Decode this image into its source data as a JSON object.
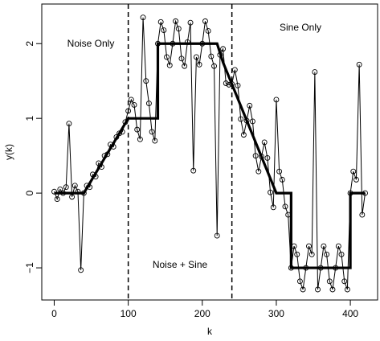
{
  "chart_data": {
    "type": "line",
    "xlabel": "k",
    "ylabel": "y(k)",
    "annotations": [
      "Noise Only",
      "Noise + Sine",
      "Sine Only"
    ],
    "xlim": [
      -16.8,
      436.8
    ],
    "ylim": [
      -1.43,
      2.53
    ],
    "xticks": [
      0,
      100,
      200,
      300,
      400
    ],
    "yticks": [
      {
        "value": -1,
        "label": "−1"
      },
      0,
      1,
      2
    ],
    "vlines": [
      100,
      240
    ],
    "series": [
      {
        "style": "points-line",
        "color": "#000000",
        "x": [
          0,
          4,
          8,
          12,
          16,
          20,
          24,
          28,
          32,
          36,
          40,
          44,
          48,
          52,
          56,
          60,
          64,
          68,
          72,
          76,
          80,
          84,
          88,
          92,
          96,
          100,
          104,
          108,
          112,
          116,
          120,
          124,
          128,
          132,
          136,
          140,
          144,
          148,
          152,
          156,
          160,
          164,
          168,
          172,
          176,
          180,
          184,
          188,
          192,
          196,
          200,
          204,
          208,
          212,
          216,
          220,
          224,
          228,
          232,
          236,
          240,
          244,
          248,
          252,
          256,
          260,
          264,
          268,
          272,
          276,
          280,
          284,
          288,
          292,
          296,
          300,
          304,
          308,
          312,
          316,
          320,
          324,
          328,
          332,
          336,
          340,
          344,
          348,
          352,
          356,
          360,
          364,
          368,
          372,
          376,
          380,
          384,
          388,
          392,
          396,
          400,
          404,
          408,
          412,
          416,
          420
        ],
        "values": [
          0.02,
          -0.08,
          0.05,
          0.0,
          0.08,
          0.93,
          -0.05,
          0.1,
          0.02,
          -1.03,
          0.0,
          0.1,
          0.08,
          0.25,
          0.22,
          0.4,
          0.35,
          0.5,
          0.52,
          0.65,
          0.62,
          0.75,
          0.8,
          0.82,
          0.95,
          1.1,
          1.25,
          1.18,
          0.85,
          0.72,
          2.35,
          1.5,
          1.2,
          0.82,
          0.7,
          2.0,
          2.29,
          2.18,
          1.82,
          1.71,
          2.0,
          2.3,
          2.2,
          1.8,
          1.7,
          2.02,
          2.28,
          0.3,
          1.82,
          1.72,
          2.0,
          2.3,
          2.17,
          1.83,
          1.7,
          -0.57,
          1.85,
          1.93,
          1.47,
          1.45,
          1.46,
          1.65,
          1.44,
          0.99,
          0.78,
          0.97,
          1.17,
          0.96,
          0.5,
          0.29,
          0.49,
          0.68,
          0.47,
          0.01,
          -0.19,
          1.25,
          0.29,
          0.18,
          -0.18,
          -0.29,
          -1.0,
          -0.71,
          -0.82,
          -1.18,
          -1.29,
          -1.0,
          -0.71,
          -0.82,
          1.62,
          -1.29,
          -1.0,
          -0.71,
          -0.82,
          -1.18,
          -1.29,
          -1.0,
          -0.71,
          -0.82,
          -1.18,
          -1.29,
          0.0,
          0.29,
          0.18,
          1.72,
          -0.29,
          0.0
        ]
      },
      {
        "style": "thick-line",
        "color": "#000000",
        "x": [
          0,
          40,
          100,
          140,
          140,
          220,
          228,
          300,
          320,
          320,
          400,
          400,
          420
        ],
        "values": [
          0,
          0,
          1,
          1,
          2,
          2,
          1.75,
          0,
          0,
          -1,
          -1,
          0,
          0
        ]
      }
    ]
  }
}
